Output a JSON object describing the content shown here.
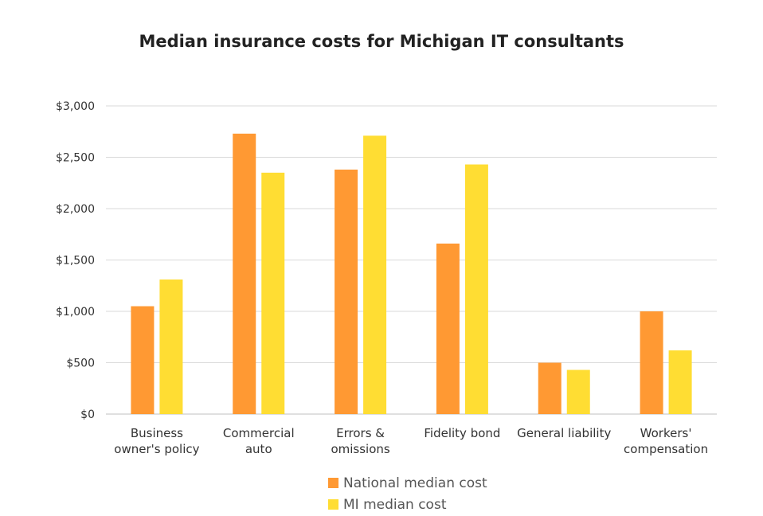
{
  "chart_data": {
    "type": "bar",
    "title": "Median insurance costs for Michigan IT consultants",
    "categories": [
      [
        "Business",
        "owner's policy"
      ],
      [
        "Commercial",
        "auto"
      ],
      [
        "Errors &",
        "omissions"
      ],
      [
        "Fidelity bond"
      ],
      [
        "General liability"
      ],
      [
        "Workers'",
        "compensation"
      ]
    ],
    "series": [
      {
        "name": "National median cost",
        "color": "#FF9933",
        "values": [
          1050,
          2730,
          2380,
          1660,
          500,
          1000
        ]
      },
      {
        "name": "MI median cost",
        "color": "#FFDD33",
        "values": [
          1310,
          2350,
          2710,
          2430,
          430,
          620
        ]
      }
    ],
    "ylim": [
      0,
      3000
    ],
    "yticks": [
      0,
      500,
      1000,
      1500,
      2000,
      2500,
      3000
    ],
    "ytick_labels": [
      "$0",
      "$500",
      "$1,000",
      "$1,500",
      "$2,000",
      "$2,500",
      "$3,000"
    ],
    "xlabel": "",
    "ylabel": "",
    "grid": true,
    "legend_position": "bottom"
  }
}
